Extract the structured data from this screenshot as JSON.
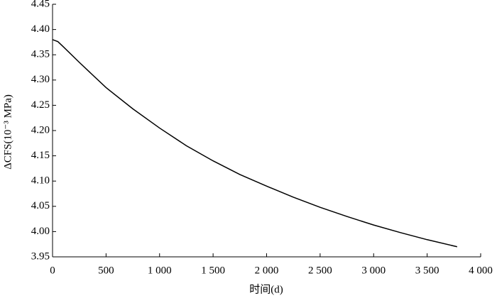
{
  "chart_data": {
    "type": "line",
    "x_label": "时间(d)",
    "y_label": "ΔCFS(10⁻³ MPa)",
    "x": [
      0,
      50,
      100,
      250,
      500,
      750,
      1000,
      1250,
      1500,
      1750,
      2000,
      2250,
      2500,
      2750,
      3000,
      3250,
      3500,
      3780
    ],
    "series": [
      {
        "color": "#000000",
        "values": [
          4.38,
          4.376,
          4.366,
          4.335,
          4.285,
          4.243,
          4.205,
          4.17,
          4.14,
          4.113,
          4.09,
          4.068,
          4.048,
          4.03,
          4.013,
          3.998,
          3.984,
          3.97
        ]
      }
    ],
    "xlim": [
      0,
      4000
    ],
    "xticks": [
      0,
      500,
      {
        "value": 1000,
        "label": "1 000"
      },
      {
        "value": 1500,
        "label": "1 500"
      },
      {
        "value": 2000,
        "label": "2 000"
      },
      {
        "value": 2500,
        "label": "2 500"
      },
      {
        "value": 3000,
        "label": "3 000"
      },
      {
        "value": 3500,
        "label": "3 500"
      },
      {
        "value": 4000,
        "label": "4 000"
      }
    ],
    "ylim": [
      3.95,
      4.45
    ],
    "yticks": [
      3.95,
      {
        "value": 4.0,
        "label": "4.00"
      },
      4.05,
      {
        "value": 4.1,
        "label": "4.10"
      },
      4.15,
      {
        "value": 4.2,
        "label": "4.20"
      },
      4.25,
      {
        "value": 4.3,
        "label": "4.30"
      },
      4.35,
      {
        "value": 4.4,
        "label": "4.40"
      },
      4.45
    ],
    "grid": false
  }
}
